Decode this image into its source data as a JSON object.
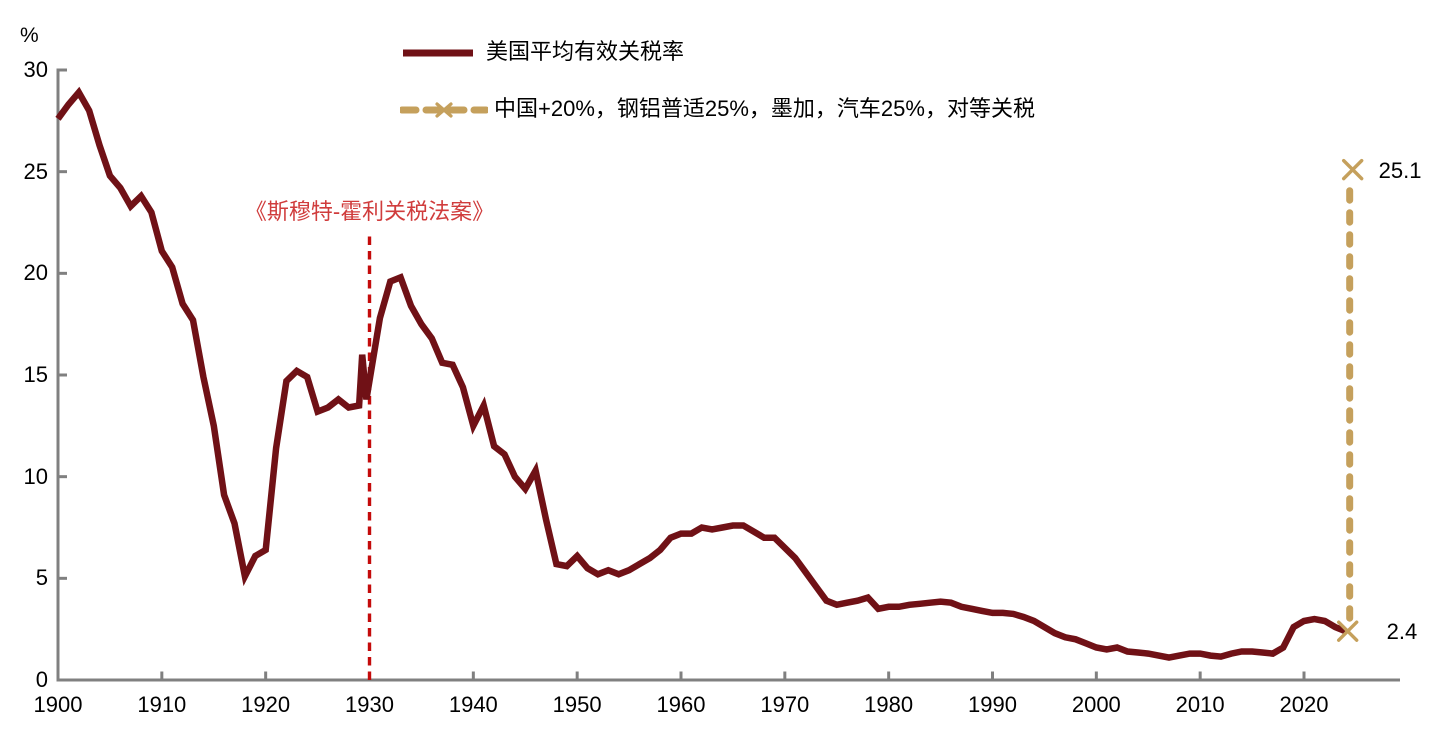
{
  "chart_data": {
    "type": "line",
    "title": "",
    "unit_label": "%",
    "grid": false,
    "background": "#ffffff",
    "axis_color": "#808080",
    "x_axis": {
      "min": 1900,
      "max": 2029,
      "tick_labels": [
        "1900",
        "1910",
        "1920",
        "1930",
        "1940",
        "1950",
        "1960",
        "1970",
        "1980",
        "1990",
        "2000",
        "2010",
        "2020"
      ],
      "tick_years": [
        1900,
        1910,
        1920,
        1930,
        1940,
        1950,
        1960,
        1970,
        1980,
        1990,
        2000,
        2010,
        2020
      ]
    },
    "y_axis": {
      "min": 0,
      "max": 30,
      "tick_labels": [
        "0",
        "5",
        "10",
        "15",
        "20",
        "25",
        "30"
      ],
      "tick_values": [
        0,
        5,
        10,
        15,
        20,
        25,
        30
      ],
      "unit": "%"
    },
    "series": [
      {
        "name": "美国平均有效关税率",
        "color": "#701116",
        "style": "solid",
        "points": [
          [
            1900,
            27.6
          ],
          [
            1901,
            28.3
          ],
          [
            1902,
            28.9
          ],
          [
            1903,
            28.0
          ],
          [
            1904,
            26.3
          ],
          [
            1905,
            24.8
          ],
          [
            1906,
            24.2
          ],
          [
            1907,
            23.3
          ],
          [
            1908,
            23.8
          ],
          [
            1909,
            23.0
          ],
          [
            1910,
            21.1
          ],
          [
            1911,
            20.3
          ],
          [
            1912,
            18.5
          ],
          [
            1913,
            17.7
          ],
          [
            1914,
            14.9
          ],
          [
            1915,
            12.5
          ],
          [
            1916,
            9.1
          ],
          [
            1917,
            7.7
          ],
          [
            1918,
            5.1
          ],
          [
            1919,
            6.1
          ],
          [
            1920,
            6.4
          ],
          [
            1921,
            11.4
          ],
          [
            1922,
            14.7
          ],
          [
            1923,
            15.2
          ],
          [
            1924,
            14.9
          ],
          [
            1925,
            13.2
          ],
          [
            1926,
            13.4
          ],
          [
            1927,
            13.8
          ],
          [
            1928,
            13.4
          ],
          [
            1929,
            13.5
          ],
          [
            1929.3,
            16.0
          ],
          [
            1929.7,
            13.8
          ],
          [
            1931,
            17.8
          ],
          [
            1932,
            19.6
          ],
          [
            1933,
            19.8
          ],
          [
            1934,
            18.4
          ],
          [
            1935,
            17.5
          ],
          [
            1936,
            16.8
          ],
          [
            1937,
            15.6
          ],
          [
            1938,
            15.5
          ],
          [
            1939,
            14.4
          ],
          [
            1940,
            12.5
          ],
          [
            1941,
            13.5
          ],
          [
            1942,
            11.5
          ],
          [
            1943,
            11.1
          ],
          [
            1944,
            10.0
          ],
          [
            1945,
            9.4
          ],
          [
            1946,
            10.3
          ],
          [
            1947,
            7.9
          ],
          [
            1948,
            5.7
          ],
          [
            1949,
            5.6
          ],
          [
            1950,
            6.1
          ],
          [
            1951,
            5.5
          ],
          [
            1952,
            5.2
          ],
          [
            1953,
            5.4
          ],
          [
            1954,
            5.2
          ],
          [
            1955,
            5.4
          ],
          [
            1956,
            5.7
          ],
          [
            1957,
            6.0
          ],
          [
            1958,
            6.4
          ],
          [
            1959,
            7.0
          ],
          [
            1960,
            7.2
          ],
          [
            1961,
            7.2
          ],
          [
            1962,
            7.5
          ],
          [
            1963,
            7.4
          ],
          [
            1964,
            7.5
          ],
          [
            1965,
            7.6
          ],
          [
            1966,
            7.6
          ],
          [
            1967,
            7.3
          ],
          [
            1968,
            7.0
          ],
          [
            1969,
            7.0
          ],
          [
            1970,
            6.5
          ],
          [
            1971,
            6.0
          ],
          [
            1972,
            5.3
          ],
          [
            1973,
            4.6
          ],
          [
            1974,
            3.9
          ],
          [
            1975,
            3.7
          ],
          [
            1976,
            3.8
          ],
          [
            1977,
            3.9
          ],
          [
            1978,
            4.05
          ],
          [
            1979,
            3.5
          ],
          [
            1980,
            3.6
          ],
          [
            1981,
            3.6
          ],
          [
            1982,
            3.7
          ],
          [
            1983,
            3.75
          ],
          [
            1984,
            3.8
          ],
          [
            1985,
            3.85
          ],
          [
            1986,
            3.8
          ],
          [
            1987,
            3.6
          ],
          [
            1988,
            3.5
          ],
          [
            1989,
            3.4
          ],
          [
            1990,
            3.3
          ],
          [
            1991,
            3.3
          ],
          [
            1992,
            3.25
          ],
          [
            1993,
            3.1
          ],
          [
            1994,
            2.9
          ],
          [
            1995,
            2.6
          ],
          [
            1996,
            2.3
          ],
          [
            1997,
            2.1
          ],
          [
            1998,
            2.0
          ],
          [
            1999,
            1.8
          ],
          [
            2000,
            1.6
          ],
          [
            2001,
            1.5
          ],
          [
            2002,
            1.6
          ],
          [
            2003,
            1.4
          ],
          [
            2004,
            1.35
          ],
          [
            2005,
            1.3
          ],
          [
            2006,
            1.2
          ],
          [
            2007,
            1.1
          ],
          [
            2008,
            1.2
          ],
          [
            2009,
            1.3
          ],
          [
            2010,
            1.3
          ],
          [
            2011,
            1.2
          ],
          [
            2012,
            1.15
          ],
          [
            2013,
            1.3
          ],
          [
            2014,
            1.4
          ],
          [
            2015,
            1.4
          ],
          [
            2016,
            1.35
          ],
          [
            2017,
            1.3
          ],
          [
            2018,
            1.6
          ],
          [
            2019,
            2.6
          ],
          [
            2020,
            2.9
          ],
          [
            2021,
            3.0
          ],
          [
            2022,
            2.9
          ],
          [
            2023,
            2.6
          ],
          [
            2024,
            2.4
          ]
        ]
      },
      {
        "name": "中国+20%，钢铝普适25%，墨加，汽车25%，对等关税",
        "color": "#c5a05c",
        "style": "dashed-vertical-x",
        "marker": "x",
        "x_year": 2024.4,
        "from_value": 2.4,
        "to_value": 25.1
      }
    ],
    "annotations": {
      "smoot_hawley": {
        "text": "《斯穆特-霍利关税法案》",
        "text_color": "#d03c3c",
        "line_color": "#c40b0b",
        "x_year": 1930,
        "line_from_value": 0,
        "line_to_value": 22
      },
      "top_value_label": "25.1",
      "bottom_value_label": "2.4"
    },
    "legend_position": "top-center"
  },
  "legend": {
    "items": [
      {
        "label": "美国平均有效关税率"
      },
      {
        "label": "中国+20%，钢铝普适25%，墨加，汽车25%，对等关税"
      }
    ]
  }
}
